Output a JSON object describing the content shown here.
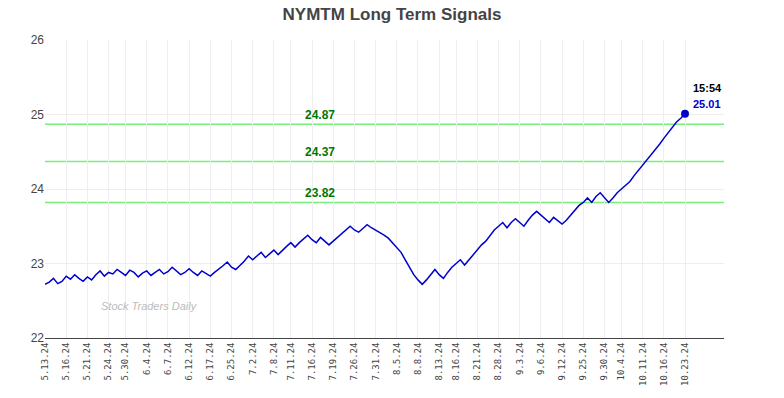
{
  "chart_data": {
    "type": "line",
    "title": "NYMTM Long Term Signals",
    "categories": [
      "5.13.24",
      null,
      null,
      null,
      null,
      "5.16.24",
      null,
      null,
      null,
      null,
      "5.21.24",
      null,
      null,
      null,
      null,
      "5.24.24",
      null,
      null,
      null,
      "5.30.24",
      null,
      null,
      null,
      null,
      "6.4.24",
      null,
      null,
      null,
      null,
      "6.7.24",
      null,
      null,
      null,
      null,
      "6.12.24",
      null,
      null,
      null,
      null,
      "6.17.24",
      null,
      null,
      null,
      null,
      "6.25.24",
      null,
      null,
      null,
      null,
      "7.2.24",
      null,
      null,
      null,
      null,
      "7.8.24",
      null,
      null,
      null,
      "7.11.24",
      null,
      null,
      null,
      null,
      "7.16.24",
      null,
      null,
      null,
      null,
      "7.19.24",
      null,
      null,
      null,
      null,
      "7.26.24",
      null,
      null,
      null,
      null,
      "7.31.24",
      null,
      null,
      null,
      null,
      "8.5.24",
      null,
      null,
      null,
      null,
      "8.8.24",
      null,
      null,
      null,
      null,
      "8.13.24",
      null,
      null,
      null,
      "8.16.24",
      null,
      null,
      null,
      null,
      "8.21.24",
      null,
      null,
      null,
      null,
      "8.28.24",
      null,
      null,
      null,
      null,
      "9.3.24",
      null,
      null,
      null,
      null,
      "9.6.24",
      null,
      null,
      null,
      null,
      "9.12.24",
      null,
      null,
      null,
      null,
      "9.25.24",
      null,
      null,
      null,
      null,
      "9.30.24",
      null,
      null,
      null,
      "10.4.24",
      null,
      null,
      null,
      null,
      "10.11.24",
      null,
      null,
      null,
      null,
      "10.16.24",
      null,
      null,
      null,
      null,
      "10.23.24"
    ],
    "values": [
      22.72,
      22.75,
      22.8,
      22.73,
      22.76,
      22.83,
      22.79,
      22.85,
      22.8,
      22.76,
      22.82,
      22.78,
      22.85,
      22.9,
      22.83,
      22.88,
      22.86,
      22.92,
      22.88,
      22.84,
      22.91,
      22.88,
      22.82,
      22.87,
      22.9,
      22.84,
      22.88,
      22.92,
      22.86,
      22.89,
      22.95,
      22.9,
      22.85,
      22.88,
      22.93,
      22.88,
      22.84,
      22.9,
      22.87,
      22.83,
      22.88,
      22.92,
      22.97,
      23.02,
      22.95,
      22.92,
      22.97,
      23.03,
      23.1,
      23.05,
      23.1,
      23.15,
      23.08,
      23.13,
      23.18,
      23.12,
      23.18,
      23.23,
      23.28,
      23.22,
      23.28,
      23.33,
      23.38,
      23.32,
      23.28,
      23.35,
      23.3,
      23.25,
      23.3,
      23.35,
      23.4,
      23.45,
      23.5,
      23.45,
      23.42,
      23.47,
      23.52,
      23.48,
      23.45,
      23.42,
      23.38,
      23.34,
      23.28,
      23.22,
      23.15,
      23.05,
      22.95,
      22.85,
      22.78,
      22.72,
      22.78,
      22.85,
      22.92,
      22.85,
      22.8,
      22.88,
      22.95,
      23.0,
      23.05,
      22.98,
      23.05,
      23.12,
      23.18,
      23.25,
      23.3,
      23.38,
      23.45,
      23.5,
      23.55,
      23.48,
      23.55,
      23.6,
      23.55,
      23.5,
      23.58,
      23.65,
      23.7,
      23.65,
      23.6,
      23.55,
      23.62,
      23.58,
      23.53,
      23.58,
      23.65,
      23.72,
      23.78,
      23.82,
      23.88,
      23.82,
      23.9,
      23.95,
      23.88,
      23.82,
      23.88,
      23.95,
      24.0,
      24.05,
      24.1,
      24.18,
      24.25,
      24.32,
      24.38,
      24.45,
      24.52,
      24.6,
      24.68,
      24.75,
      24.82,
      24.9,
      24.95,
      25.01
    ],
    "color": "#0000cc",
    "marker": "last",
    "ylim": [
      22,
      26
    ],
    "yticks": [
      22,
      23,
      24,
      25,
      26
    ],
    "grid": true,
    "h_lines": [
      {
        "value": 23.82,
        "label": "23.82"
      },
      {
        "value": 24.37,
        "label": "24.37"
      },
      {
        "value": 24.87,
        "label": "24.87"
      }
    ],
    "h_line_color": "#77ee77",
    "h_line_label_color": "#007700",
    "annotations": [
      {
        "text": "15:54",
        "color": "#000000"
      },
      {
        "text": "25.01",
        "color": "#0000cc"
      }
    ],
    "watermark": {
      "text": "Stock Traders Daily",
      "color": "#bbbbbb"
    }
  }
}
